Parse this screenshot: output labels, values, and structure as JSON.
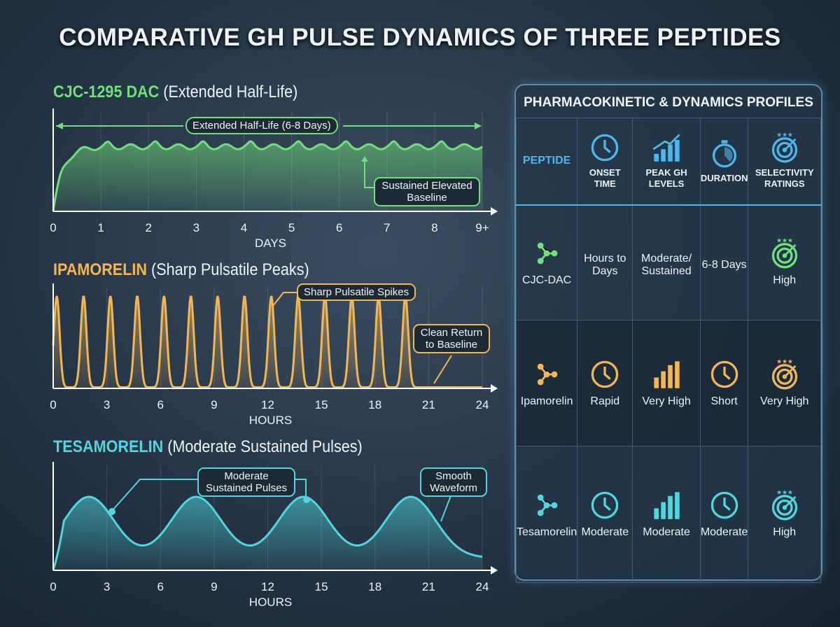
{
  "title": "COMPARATIVE GH PULSE DYNAMICS OF THREE PEPTIDES",
  "colors": {
    "cjc": "#6fe07a",
    "ipa": "#f2b656",
    "tesa": "#4fd6e0",
    "header": "#4fb6ec"
  },
  "chart_data": [
    {
      "type": "area",
      "name_label": "CJC-1295 DAC",
      "subtitle": "(Extended Half-Life)",
      "xlabel": "DAYS",
      "x_ticks": [
        "0",
        "1",
        "2",
        "3",
        "4",
        "5",
        "6",
        "7",
        "8",
        "9+"
      ],
      "xlim": [
        0,
        9
      ],
      "y_relative": {
        "rise_to_plateau_days": 0.7,
        "plateau_level": 0.65,
        "ripple_period_days": 1
      },
      "annotations": [
        "Extended Half-Life (6-8 Days)",
        "Sustained Elevated Baseline"
      ]
    },
    {
      "type": "line",
      "name_label": "IPAMORELIN",
      "subtitle": "(Sharp Pulsatile Peaks)",
      "xlabel": "HOURS",
      "x_ticks": [
        "0",
        "3",
        "6",
        "9",
        "12",
        "15",
        "18",
        "21",
        "24"
      ],
      "xlim": [
        0,
        24
      ],
      "peak_times_hours": [
        0.2,
        1.7,
        3.2,
        4.7,
        6.2,
        7.7,
        9.2,
        10.7,
        12.2,
        13.7,
        15.2,
        16.7,
        18.2,
        19.7
      ],
      "peak_level": 0.9,
      "annotations": [
        "Sharp Pulsatile Spikes",
        "Clean Return to Baseline"
      ]
    },
    {
      "type": "area",
      "name_label": "TESAMORELIN",
      "subtitle": "(Moderate Sustained Pulses)",
      "xlabel": "HOURS",
      "x_ticks": [
        "0",
        "3",
        "6",
        "9",
        "12",
        "15",
        "18",
        "21",
        "24"
      ],
      "xlim": [
        0,
        24
      ],
      "peak_times_hours": [
        2,
        8,
        14,
        20
      ],
      "peak_level": 0.7,
      "trough_level": 0.12,
      "annotations": [
        "Moderate Sustained Pulses",
        "Smooth Waveform"
      ]
    }
  ],
  "table": {
    "title": "PHARMACOKINETIC & DYNAMICS PROFILES",
    "headers": [
      {
        "label": "PEPTIDE"
      },
      {
        "label": "ONSET TIME",
        "icon": "clock-icon"
      },
      {
        "label": "PEAK GH LEVELS",
        "icon": "bar-chart-up-icon"
      },
      {
        "label": "DURATION",
        "icon": "stopwatch-icon"
      },
      {
        "label": "SELECTIVITY RATINGS",
        "icon": "target-stars-icon"
      }
    ],
    "rows": [
      {
        "peptide": "CJC-DAC",
        "onset": "Hours to Days",
        "peak": "Moderate/ Sustained",
        "duration": "6-8 Days",
        "selectivity": "High",
        "color": "#6fe07a"
      },
      {
        "peptide": "Ipamorelin",
        "onset": "Rapid",
        "peak": "Very High",
        "duration": "Short",
        "selectivity": "Very High",
        "color": "#f2b656"
      },
      {
        "peptide": "Tesamorelin",
        "onset": "Moderate",
        "peak": "Moderate",
        "duration": "Moderate",
        "selectivity": "High",
        "color": "#4fd6e0"
      }
    ]
  }
}
